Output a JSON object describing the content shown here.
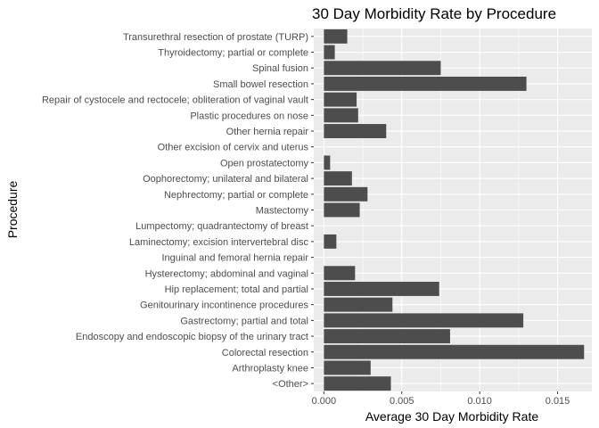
{
  "chart_data": {
    "type": "bar",
    "orientation": "horizontal",
    "title": "30 Day Morbidity Rate by Procedure",
    "xlabel": "Average 30 Day Morbidity Rate",
    "ylabel": "Procedure",
    "xlim": [
      0,
      0.0167
    ],
    "xticks": [
      0,
      0.005,
      0.01,
      0.015
    ],
    "xtick_labels": [
      "0.000",
      "0.005",
      "0.010",
      "0.015"
    ],
    "grid": true,
    "colors": {
      "panel": "#ebebeb",
      "grid": "#ffffff",
      "bar": "#4d4d4d"
    },
    "categories": [
      "Transurethral resection of prostate (TURP)",
      "Thyroidectomy; partial or complete",
      "Spinal fusion",
      "Small bowel resection",
      "Repair of cystocele and rectocele; obliteration of vaginal vault",
      "Plastic procedures on nose",
      "Other hernia repair",
      "Other excision of cervix and uterus",
      "Open prostatectomy",
      "Oophorectomy; unilateral and bilateral",
      "Nephrectomy; partial or complete",
      "Mastectomy",
      "Lumpectomy; quadrantectomy of breast",
      "Laminectomy; excision intervertebral disc",
      "Inguinal and femoral hernia repair",
      "Hysterectomy; abdominal and vaginal",
      "Hip replacement; total and partial",
      "Genitourinary incontinence procedures",
      "Gastrectomy; partial and total",
      "Endoscopy and endoscopic biopsy of the urinary tract",
      "Colorectal resection",
      "Arthroplasty knee",
      "<Other>"
    ],
    "values": [
      0.0015,
      0.0007,
      0.0075,
      0.013,
      0.0021,
      0.0022,
      0.004,
      0.0,
      0.0004,
      0.0018,
      0.0028,
      0.0023,
      0.0,
      0.0008,
      0.0,
      0.002,
      0.0074,
      0.0044,
      0.0128,
      0.0081,
      0.0167,
      0.003,
      0.0043
    ]
  }
}
